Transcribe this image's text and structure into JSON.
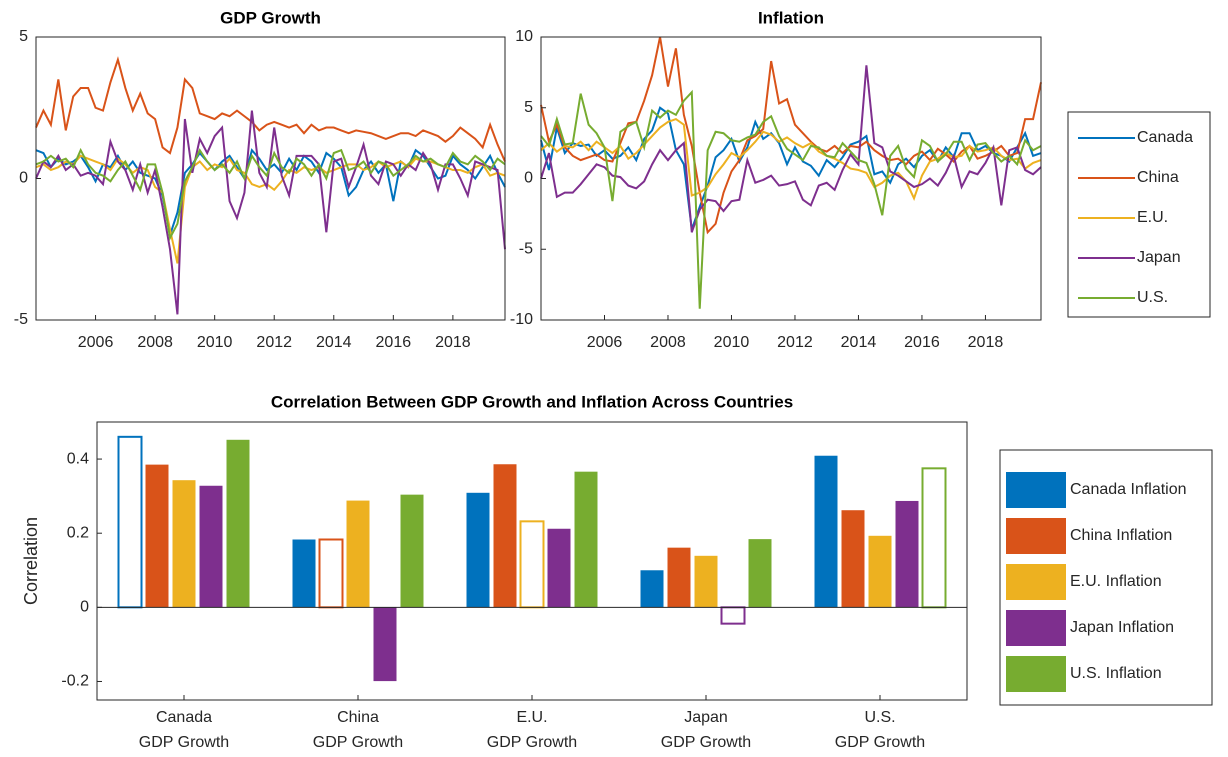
{
  "chart_data": [
    {
      "type": "line",
      "title": "GDP Growth",
      "x": [
        2004,
        2004.25,
        2004.5,
        2004.75,
        2005,
        2005.25,
        2005.5,
        2005.75,
        2006,
        2006.25,
        2006.5,
        2006.75,
        2007,
        2007.25,
        2007.5,
        2007.75,
        2008,
        2008.25,
        2008.5,
        2008.75,
        2009,
        2009.25,
        2009.5,
        2009.75,
        2010,
        2010.25,
        2010.5,
        2010.75,
        2011,
        2011.25,
        2011.5,
        2011.75,
        2012,
        2012.25,
        2012.5,
        2012.75,
        2013,
        2013.25,
        2013.5,
        2013.75,
        2014,
        2014.25,
        2014.5,
        2014.75,
        2015,
        2015.25,
        2015.5,
        2015.75,
        2016,
        2016.25,
        2016.5,
        2016.75,
        2017,
        2017.25,
        2017.5,
        2017.75,
        2018,
        2018.25,
        2018.5,
        2018.75,
        2019,
        2019.25,
        2019.5,
        2019.75
      ],
      "xlim": [
        2004,
        2019.75
      ],
      "xticks": [
        2006,
        2008,
        2010,
        2012,
        2014,
        2016,
        2018
      ],
      "ylim": [
        -5,
        5
      ],
      "yticks": [
        -5,
        0,
        5
      ],
      "legend": "outside-right",
      "series": [
        {
          "name": "Canada",
          "color": "#0072BD",
          "values": [
            1.0,
            0.9,
            0.4,
            0.7,
            0.5,
            0.6,
            0.8,
            0.4,
            -0.1,
            0.5,
            0.4,
            0.8,
            0.3,
            0.6,
            0.2,
            0.1,
            0.0,
            -0.6,
            -2.0,
            -1.2,
            0.2,
            0.5,
            0.9,
            0.6,
            0.3,
            0.6,
            0.8,
            0.4,
            0.0,
            1.0,
            0.7,
            0.3,
            0.5,
            0.2,
            0.7,
            0.3,
            0.8,
            0.6,
            0.2,
            0.9,
            0.7,
            0.4,
            -0.6,
            -0.3,
            0.3,
            0.6,
            0.2,
            0.5,
            -0.8,
            0.6,
            0.4,
            1.0,
            0.8,
            0.4,
            0.0,
            0.1,
            0.8,
            0.5,
            0.3,
            0.0,
            0.4,
            0.8,
            0.2,
            -0.3
          ]
        },
        {
          "name": "China",
          "color": "#D95319",
          "values": [
            1.8,
            2.4,
            1.9,
            3.5,
            1.7,
            2.9,
            3.2,
            3.2,
            2.5,
            2.4,
            3.4,
            4.2,
            3.2,
            2.4,
            3.0,
            2.3,
            2.1,
            1.1,
            0.9,
            1.8,
            3.5,
            3.2,
            2.3,
            2.2,
            2.1,
            2.3,
            2.2,
            2.4,
            2.2,
            2.0,
            1.7,
            1.9,
            2.0,
            1.9,
            1.8,
            1.9,
            1.6,
            1.9,
            1.7,
            1.8,
            1.8,
            1.7,
            1.6,
            1.7,
            1.65,
            1.6,
            1.5,
            1.4,
            1.5,
            1.6,
            1.6,
            1.5,
            1.7,
            1.6,
            1.5,
            1.3,
            1.5,
            1.8,
            1.6,
            1.4,
            1.1,
            1.9,
            1.2,
            0.6
          ]
        },
        {
          "name": "E.U.",
          "color": "#EDB120",
          "values": [
            0.4,
            0.5,
            0.3,
            0.4,
            0.6,
            0.5,
            0.8,
            0.7,
            0.6,
            0.5,
            0.3,
            0.7,
            0.5,
            0.2,
            0.4,
            0.3,
            -0.3,
            -0.5,
            -1.8,
            -3.0,
            -0.3,
            0.4,
            0.6,
            0.3,
            0.5,
            0.4,
            0.7,
            0.3,
            0.2,
            -0.2,
            -0.3,
            -0.2,
            -0.4,
            -0.1,
            0.3,
            0.2,
            0.4,
            0.3,
            0.4,
            0.2,
            0.3,
            0.4,
            0.5,
            0.5,
            0.3,
            0.4,
            0.6,
            0.4,
            0.5,
            0.6,
            0.4,
            0.7,
            0.6,
            0.6,
            0.5,
            0.4,
            0.3,
            0.3,
            0.2,
            0.4,
            0.5,
            0.1,
            0.2,
            0.1
          ]
        },
        {
          "name": "Japan",
          "color": "#7E2F8E",
          "values": [
            0.0,
            0.6,
            0.4,
            0.8,
            0.3,
            0.5,
            0.1,
            0.2,
            0.1,
            -0.2,
            1.3,
            0.6,
            0.3,
            -0.4,
            0.5,
            -0.5,
            0.3,
            -1.0,
            -2.5,
            -4.8,
            2.1,
            0.2,
            1.4,
            0.9,
            1.5,
            1.8,
            -0.8,
            -1.4,
            -0.5,
            2.4,
            0.2,
            -0.3,
            1.8,
            0.1,
            -0.6,
            0.8,
            0.8,
            0.8,
            0.5,
            -1.9,
            0.6,
            0.7,
            -0.3,
            0.4,
            1.2,
            0.1,
            -0.2,
            0.6,
            0.5,
            0.1,
            0.5,
            0.3,
            0.9,
            0.5,
            -0.4,
            0.5,
            0.5,
            0.0,
            -0.6,
            0.6,
            0.5,
            0.4,
            0.3,
            -2.5
          ]
        },
        {
          "name": "U.S.",
          "color": "#77AC30",
          "values": [
            0.5,
            0.6,
            0.8,
            0.6,
            0.7,
            0.4,
            1.0,
            0.5,
            0.2,
            0.1,
            -0.1,
            0.3,
            0.6,
            0.1,
            -0.4,
            0.5,
            0.5,
            -0.5,
            -2.1,
            -1.6,
            -0.1,
            0.4,
            1.0,
            0.6,
            0.3,
            0.5,
            0.2,
            0.6,
            0.0,
            0.8,
            0.4,
            0.1,
            0.9,
            0.4,
            0.2,
            0.7,
            0.5,
            0.1,
            0.5,
            0.0,
            0.9,
            1.0,
            0.3,
            0.4,
            0.6,
            0.2,
            0.6,
            0.5,
            0.1,
            0.3,
            0.5,
            0.8,
            0.6,
            0.7,
            0.5,
            0.4,
            0.9,
            0.6,
            0.5,
            0.8,
            0.6,
            0.3,
            0.7,
            0.5
          ]
        }
      ]
    },
    {
      "type": "line",
      "title": "Inflation",
      "x": [
        2004,
        2004.25,
        2004.5,
        2004.75,
        2005,
        2005.25,
        2005.5,
        2005.75,
        2006,
        2006.25,
        2006.5,
        2006.75,
        2007,
        2007.25,
        2007.5,
        2007.75,
        2008,
        2008.25,
        2008.5,
        2008.75,
        2009,
        2009.25,
        2009.5,
        2009.75,
        2010,
        2010.25,
        2010.5,
        2010.75,
        2011,
        2011.25,
        2011.5,
        2011.75,
        2012,
        2012.25,
        2012.5,
        2012.75,
        2013,
        2013.25,
        2013.5,
        2013.75,
        2014,
        2014.25,
        2014.5,
        2014.75,
        2015,
        2015.25,
        2015.5,
        2015.75,
        2016,
        2016.25,
        2016.5,
        2016.75,
        2017,
        2017.25,
        2017.5,
        2017.75,
        2018,
        2018.25,
        2018.5,
        2018.75,
        2019,
        2019.25,
        2019.5,
        2019.75
      ],
      "xlim": [
        2004,
        2019.75
      ],
      "xticks": [
        2006,
        2008,
        2010,
        2012,
        2014,
        2016,
        2018
      ],
      "ylim": [
        -10,
        10
      ],
      "yticks": [
        -10,
        -5,
        0,
        5,
        10
      ],
      "series": [
        {
          "color": "#0072BD",
          "values": [
            2.7,
            0.6,
            3.6,
            1.8,
            2.5,
            2.3,
            2.4,
            1.6,
            2.0,
            1.4,
            1.6,
            2.2,
            1.3,
            2.8,
            3.4,
            5.0,
            4.6,
            2.0,
            1.0,
            -3.6,
            -2.0,
            -0.5,
            1.5,
            2.0,
            2.8,
            1.2,
            2.2,
            4.0,
            2.8,
            3.2,
            2.5,
            1.0,
            2.2,
            1.2,
            0.9,
            0.2,
            1.3,
            0.8,
            1.5,
            2.4,
            2.6,
            3.0,
            0.3,
            0.5,
            -0.3,
            1.0,
            1.4,
            0.8,
            1.6,
            2.0,
            1.2,
            2.2,
            1.5,
            3.2,
            3.2,
            2.0,
            2.3,
            1.8,
            1.6,
            1.2,
            2.2,
            3.2,
            1.6,
            1.8
          ]
        },
        {
          "color": "#D95319",
          "values": [
            5.2,
            2.6,
            3.8,
            2.2,
            1.6,
            1.3,
            1.5,
            1.7,
            1.3,
            1.2,
            2.5,
            3.9,
            4.0,
            5.5,
            7.3,
            10.0,
            6.5,
            9.2,
            4.5,
            2.3,
            -1.0,
            -3.8,
            -3.2,
            -1.0,
            0.5,
            1.3,
            2.7,
            3.0,
            3.5,
            8.3,
            5.3,
            5.6,
            3.8,
            3.2,
            2.6,
            2.1,
            1.9,
            2.3,
            1.8,
            2.3,
            2.2,
            2.6,
            2.0,
            1.6,
            1.3,
            1.4,
            1.0,
            1.6,
            1.9,
            1.3,
            2.1,
            1.7,
            1.2,
            1.9,
            2.3,
            1.4,
            1.6,
            1.9,
            2.3,
            1.6,
            1.8,
            4.2,
            4.2,
            6.8
          ]
        },
        {
          "color": "#EDB120",
          "values": [
            2.0,
            2.5,
            1.9,
            2.3,
            2.2,
            2.6,
            2.0,
            2.6,
            2.2,
            1.8,
            2.3,
            1.4,
            1.8,
            2.4,
            3.0,
            3.6,
            4.0,
            4.2,
            3.8,
            -1.2,
            -1.0,
            -0.6,
            0.3,
            1.0,
            1.8,
            1.5,
            2.0,
            2.6,
            3.3,
            3.1,
            2.6,
            2.9,
            2.5,
            2.2,
            2.5,
            1.9,
            1.6,
            1.4,
            1.1,
            0.7,
            0.6,
            0.4,
            -0.6,
            -0.3,
            0.2,
            0.4,
            -0.2,
            -1.4,
            0.2,
            1.2,
            1.4,
            1.8,
            1.5,
            1.6,
            2.3,
            1.9,
            2.0,
            2.2,
            1.6,
            1.3,
            1.4,
            0.7,
            1.1,
            1.3
          ]
        },
        {
          "color": "#7E2F8E",
          "values": [
            0.0,
            1.8,
            -1.3,
            -1.0,
            -1.0,
            -0.4,
            0.3,
            1.0,
            0.8,
            0.2,
            0.1,
            -0.5,
            -0.7,
            -0.2,
            1.0,
            2.0,
            1.3,
            2.0,
            2.5,
            -3.8,
            -2.2,
            -1.5,
            -1.6,
            -2.3,
            -1.6,
            -1.5,
            1.3,
            -0.3,
            -0.1,
            0.2,
            -0.5,
            -0.4,
            -0.2,
            -1.5,
            -1.9,
            -0.5,
            -0.3,
            -0.8,
            0.6,
            1.7,
            1.0,
            8.0,
            2.5,
            2.2,
            0.5,
            0.2,
            -0.2,
            -0.6,
            -0.4,
            0.0,
            -0.5,
            0.4,
            1.6,
            -0.6,
            0.5,
            0.3,
            1.1,
            2.2,
            -1.9,
            2.0,
            2.2,
            0.6,
            0.3,
            0.8
          ]
        },
        {
          "color": "#77AC30",
          "values": [
            3.0,
            2.3,
            4.2,
            2.4,
            2.5,
            6.0,
            3.8,
            3.2,
            2.2,
            -1.6,
            3.3,
            3.7,
            4.0,
            2.2,
            4.8,
            4.3,
            4.8,
            4.5,
            5.5,
            6.1,
            -9.2,
            2.0,
            3.3,
            3.2,
            2.7,
            2.6,
            2.9,
            3.1,
            4.0,
            4.4,
            3.0,
            2.1,
            1.7,
            1.3,
            2.3,
            2.2,
            1.6,
            1.5,
            2.5,
            1.9,
            1.3,
            1.1,
            -0.4,
            -2.6,
            1.6,
            2.3,
            0.7,
            0.1,
            2.7,
            2.3,
            1.2,
            1.7,
            2.6,
            2.6,
            1.3,
            2.4,
            2.5,
            1.8,
            1.2,
            1.6,
            1.0,
            2.7,
            2.0,
            2.3
          ]
        }
      ]
    },
    {
      "type": "bar",
      "title": "Correlation Between GDP Growth and Inflation Across Countries",
      "y_label": "Correlation",
      "categories": [
        "Canada\nGDP Growth",
        "China\nGDP Growth",
        "E.U.\nGDP Growth",
        "Japan\nGDP Growth",
        "U.S.\nGDP Growth"
      ],
      "ylim": [
        -0.25,
        0.5
      ],
      "yticks": [
        -0.2,
        0,
        0.2,
        0.4
      ],
      "legend": "outside-right",
      "hollow_diagonal": true,
      "series": [
        {
          "name": "Canada Inflation",
          "color": "#0072BD",
          "values": [
            0.46,
            0.183,
            0.309,
            0.1,
            0.409
          ]
        },
        {
          "name": "China Inflation",
          "color": "#D95319",
          "values": [
            0.385,
            0.183,
            0.386,
            0.161,
            0.262
          ]
        },
        {
          "name": "E.U. Inflation",
          "color": "#EDB120",
          "values": [
            0.343,
            0.288,
            0.232,
            0.139,
            0.193
          ]
        },
        {
          "name": "Japan Inflation",
          "color": "#7E2F8E",
          "values": [
            0.328,
            -0.199,
            0.212,
            -0.044,
            0.287
          ]
        },
        {
          "name": "U.S. Inflation",
          "color": "#77AC30",
          "values": [
            0.452,
            0.304,
            0.366,
            0.184,
            0.375
          ]
        }
      ]
    }
  ]
}
